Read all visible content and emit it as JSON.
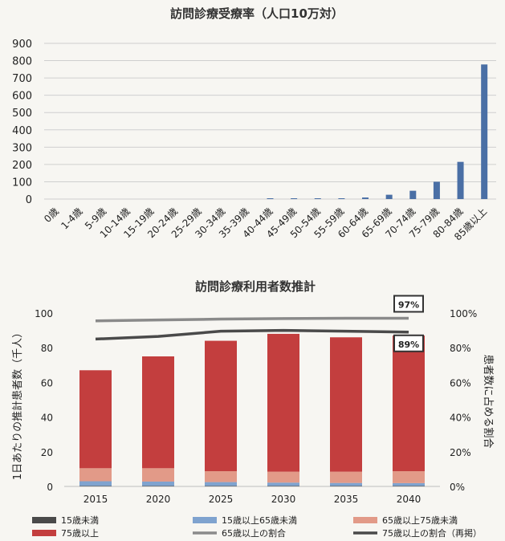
{
  "chart_data": [
    {
      "type": "bar",
      "title": "訪問診療受療率（人口10万対）",
      "categories": [
        "0歳",
        "1-4歳",
        "5-9歳",
        "10-14歳",
        "15-19歳",
        "20-24歳",
        "25-29歳",
        "30-34歳",
        "35-39歳",
        "40-44歳",
        "45-49歳",
        "50-54歳",
        "55-59歳",
        "60-64歳",
        "65-69歳",
        "70-74歳",
        "75-79歳",
        "80-84歳",
        "85歳以上"
      ],
      "values": [
        0,
        0,
        0,
        0,
        0,
        0,
        0,
        0,
        0,
        1,
        1,
        2,
        4,
        9,
        25,
        48,
        100,
        215,
        778
      ],
      "ylim": [
        0,
        900
      ],
      "yticks": [
        0,
        100,
        200,
        300,
        400,
        500,
        600,
        700,
        800,
        900
      ],
      "grid": true,
      "bar_color": "#4a6fa5"
    },
    {
      "type": "bar",
      "stacked": true,
      "title": "訪問診療利用者数推計",
      "ylabel": "1日あたりの推計患者数（千人）",
      "ylabel_right": "患者数に占める割合",
      "categories": [
        "2015",
        "2020",
        "2025",
        "2030",
        "2035",
        "2040"
      ],
      "ylim": [
        0,
        100
      ],
      "yticks": [
        0,
        20,
        40,
        60,
        80,
        100
      ],
      "y2lim": [
        0,
        100
      ],
      "y2ticks": [
        "0%",
        "20%",
        "40%",
        "60%",
        "80%",
        "100%"
      ],
      "series": [
        {
          "name": "15歳未満",
          "kind": "bar",
          "color": "#4a4a4a",
          "values": [
            0.3,
            0.3,
            0.3,
            0.3,
            0.3,
            0.3
          ]
        },
        {
          "name": "15歳以上65歳未満",
          "kind": "bar",
          "color": "#7fa3cf",
          "values": [
            2.7,
            2.5,
            2.2,
            1.9,
            1.7,
            1.6
          ]
        },
        {
          "name": "65歳以上75歳未満",
          "kind": "bar",
          "color": "#e29a88",
          "values": [
            7.5,
            7.7,
            6.3,
            6.3,
            6.5,
            6.9
          ]
        },
        {
          "name": "75歳以上",
          "kind": "bar",
          "color": "#c33e3e",
          "values": [
            56.5,
            64.5,
            75.2,
            79.5,
            77.5,
            78.2
          ]
        },
        {
          "name": "65歳以上の割合",
          "kind": "line",
          "axis": "right",
          "color": "#8a8a8a",
          "values": [
            95.5,
            96,
            96.5,
            96.8,
            97,
            97
          ]
        },
        {
          "name": "75歳以上の割合（再掲）",
          "kind": "line",
          "axis": "right",
          "color": "#4a4a4a",
          "values": [
            85,
            86.5,
            89.5,
            90,
            89.5,
            89
          ]
        }
      ],
      "annotations": [
        {
          "text": "97%",
          "series": "65歳以上の割合",
          "category": "2040"
        },
        {
          "text": "89%",
          "series": "75歳以上の割合（再掲）",
          "category": "2040"
        }
      ],
      "legend": "bottom"
    }
  ]
}
